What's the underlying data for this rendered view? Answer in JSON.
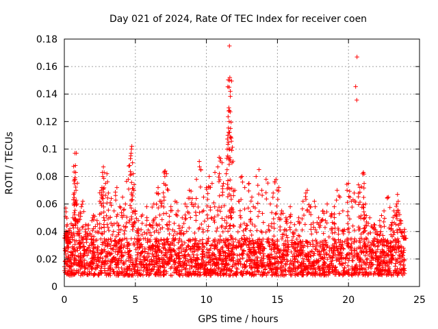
{
  "chart_data": {
    "type": "scatter",
    "title": "Day 021 of 2024, Rate Of TEC Index for receiver coen",
    "xlabel": "GPS time / hours",
    "ylabel": "ROTI / TECUs",
    "xlim": [
      0,
      25
    ],
    "ylim": [
      0,
      0.18
    ],
    "x_ticks": [
      "0",
      "5",
      "10",
      "15",
      "20",
      "25"
    ],
    "y_ticks": [
      "0",
      "0.02",
      "0.04",
      "0.06",
      "0.08",
      "0.1",
      "0.12",
      "0.14",
      "0.16",
      "0.18"
    ],
    "grid": true,
    "marker": "plus",
    "color": "#ff0000",
    "x_extent": [
      0,
      24
    ],
    "baseline_band": [
      0.008,
      0.035
    ],
    "series": [
      {
        "values": [
          {
            "x": 0.05,
            "y": 0.037
          },
          {
            "x": 0.1,
            "y": 0.057
          },
          {
            "x": 0.15,
            "y": 0.036
          },
          {
            "x": 0.2,
            "y": 0.045
          },
          {
            "x": 0.3,
            "y": 0.032
          },
          {
            "x": 0.4,
            "y": 0.042
          },
          {
            "x": 0.5,
            "y": 0.038
          },
          {
            "x": 0.6,
            "y": 0.05
          },
          {
            "x": 0.7,
            "y": 0.068
          },
          {
            "x": 0.72,
            "y": 0.078
          },
          {
            "x": 0.75,
            "y": 0.097
          },
          {
            "x": 0.78,
            "y": 0.088
          },
          {
            "x": 0.8,
            "y": 0.083
          },
          {
            "x": 0.82,
            "y": 0.07
          },
          {
            "x": 0.85,
            "y": 0.097
          },
          {
            "x": 0.9,
            "y": 0.06
          },
          {
            "x": 1.0,
            "y": 0.052
          },
          {
            "x": 1.2,
            "y": 0.058
          },
          {
            "x": 1.3,
            "y": 0.062
          },
          {
            "x": 1.5,
            "y": 0.045
          },
          {
            "x": 1.7,
            "y": 0.042
          },
          {
            "x": 2.0,
            "y": 0.05
          },
          {
            "x": 2.3,
            "y": 0.048
          },
          {
            "x": 2.5,
            "y": 0.062
          },
          {
            "x": 2.6,
            "y": 0.07
          },
          {
            "x": 2.7,
            "y": 0.08
          },
          {
            "x": 2.75,
            "y": 0.087
          },
          {
            "x": 2.8,
            "y": 0.083
          },
          {
            "x": 2.9,
            "y": 0.075
          },
          {
            "x": 3.0,
            "y": 0.082
          },
          {
            "x": 3.1,
            "y": 0.068
          },
          {
            "x": 3.3,
            "y": 0.064
          },
          {
            "x": 3.5,
            "y": 0.055
          },
          {
            "x": 3.7,
            "y": 0.072
          },
          {
            "x": 3.9,
            "y": 0.058
          },
          {
            "x": 4.1,
            "y": 0.065
          },
          {
            "x": 4.3,
            "y": 0.06
          },
          {
            "x": 4.5,
            "y": 0.078
          },
          {
            "x": 4.6,
            "y": 0.088
          },
          {
            "x": 4.7,
            "y": 0.097
          },
          {
            "x": 4.72,
            "y": 0.1
          },
          {
            "x": 4.75,
            "y": 0.102
          },
          {
            "x": 4.8,
            "y": 0.09
          },
          {
            "x": 4.85,
            "y": 0.082
          },
          {
            "x": 4.9,
            "y": 0.07
          },
          {
            "x": 5.0,
            "y": 0.055
          },
          {
            "x": 5.2,
            "y": 0.048
          },
          {
            "x": 5.5,
            "y": 0.052
          },
          {
            "x": 5.8,
            "y": 0.058
          },
          {
            "x": 6.0,
            "y": 0.045
          },
          {
            "x": 6.3,
            "y": 0.06
          },
          {
            "x": 6.5,
            "y": 0.068
          },
          {
            "x": 6.6,
            "y": 0.072
          },
          {
            "x": 6.8,
            "y": 0.062
          },
          {
            "x": 7.0,
            "y": 0.075
          },
          {
            "x": 7.1,
            "y": 0.084
          },
          {
            "x": 7.2,
            "y": 0.082
          },
          {
            "x": 7.3,
            "y": 0.07
          },
          {
            "x": 7.5,
            "y": 0.058
          },
          {
            "x": 7.8,
            "y": 0.062
          },
          {
            "x": 8.0,
            "y": 0.055
          },
          {
            "x": 8.3,
            "y": 0.05
          },
          {
            "x": 8.5,
            "y": 0.06
          },
          {
            "x": 8.8,
            "y": 0.07
          },
          {
            "x": 9.0,
            "y": 0.064
          },
          {
            "x": 9.3,
            "y": 0.078
          },
          {
            "x": 9.5,
            "y": 0.091
          },
          {
            "x": 9.6,
            "y": 0.085
          },
          {
            "x": 9.8,
            "y": 0.065
          },
          {
            "x": 10.0,
            "y": 0.072
          },
          {
            "x": 10.2,
            "y": 0.08
          },
          {
            "x": 10.4,
            "y": 0.075
          },
          {
            "x": 10.6,
            "y": 0.083
          },
          {
            "x": 10.8,
            "y": 0.087
          },
          {
            "x": 10.9,
            "y": 0.094
          },
          {
            "x": 11.0,
            "y": 0.093
          },
          {
            "x": 11.1,
            "y": 0.09
          },
          {
            "x": 11.2,
            "y": 0.075
          },
          {
            "x": 11.4,
            "y": 0.082
          },
          {
            "x": 11.5,
            "y": 0.095
          },
          {
            "x": 11.55,
            "y": 0.105
          },
          {
            "x": 11.58,
            "y": 0.112
          },
          {
            "x": 11.6,
            "y": 0.12
          },
          {
            "x": 11.62,
            "y": 0.128
          },
          {
            "x": 11.6,
            "y": 0.145
          },
          {
            "x": 11.63,
            "y": 0.15
          },
          {
            "x": 11.65,
            "y": 0.152
          },
          {
            "x": 11.62,
            "y": 0.175
          },
          {
            "x": 11.7,
            "y": 0.115
          },
          {
            "x": 11.75,
            "y": 0.108
          },
          {
            "x": 11.8,
            "y": 0.09
          },
          {
            "x": 12.0,
            "y": 0.07
          },
          {
            "x": 12.3,
            "y": 0.062
          },
          {
            "x": 12.5,
            "y": 0.08
          },
          {
            "x": 12.7,
            "y": 0.072
          },
          {
            "x": 13.0,
            "y": 0.075
          },
          {
            "x": 13.2,
            "y": 0.065
          },
          {
            "x": 13.5,
            "y": 0.08
          },
          {
            "x": 13.7,
            "y": 0.085
          },
          {
            "x": 13.9,
            "y": 0.07
          },
          {
            "x": 14.2,
            "y": 0.078
          },
          {
            "x": 14.5,
            "y": 0.06
          },
          {
            "x": 14.7,
            "y": 0.068
          },
          {
            "x": 14.9,
            "y": 0.078
          },
          {
            "x": 15.1,
            "y": 0.072
          },
          {
            "x": 15.3,
            "y": 0.055
          },
          {
            "x": 15.6,
            "y": 0.05
          },
          {
            "x": 15.9,
            "y": 0.058
          },
          {
            "x": 16.2,
            "y": 0.045
          },
          {
            "x": 16.5,
            "y": 0.05
          },
          {
            "x": 16.8,
            "y": 0.062
          },
          {
            "x": 17.0,
            "y": 0.068
          },
          {
            "x": 17.1,
            "y": 0.07
          },
          {
            "x": 17.3,
            "y": 0.058
          },
          {
            "x": 17.6,
            "y": 0.062
          },
          {
            "x": 17.9,
            "y": 0.05
          },
          {
            "x": 18.2,
            "y": 0.055
          },
          {
            "x": 18.5,
            "y": 0.06
          },
          {
            "x": 18.8,
            "y": 0.052
          },
          {
            "x": 19.0,
            "y": 0.058
          },
          {
            "x": 19.2,
            "y": 0.07
          },
          {
            "x": 19.4,
            "y": 0.065
          },
          {
            "x": 19.6,
            "y": 0.055
          },
          {
            "x": 19.9,
            "y": 0.07
          },
          {
            "x": 20.0,
            "y": 0.075
          },
          {
            "x": 20.2,
            "y": 0.062
          },
          {
            "x": 20.4,
            "y": 0.068
          },
          {
            "x": 20.6,
            "y": 0.167
          },
          {
            "x": 20.7,
            "y": 0.074
          },
          {
            "x": 20.8,
            "y": 0.072
          },
          {
            "x": 21.0,
            "y": 0.082
          },
          {
            "x": 21.05,
            "y": 0.083
          },
          {
            "x": 21.1,
            "y": 0.075
          },
          {
            "x": 21.2,
            "y": 0.06
          },
          {
            "x": 21.5,
            "y": 0.05
          },
          {
            "x": 21.8,
            "y": 0.045
          },
          {
            "x": 22.0,
            "y": 0.04
          },
          {
            "x": 22.2,
            "y": 0.048
          },
          {
            "x": 22.5,
            "y": 0.055
          },
          {
            "x": 22.8,
            "y": 0.065
          },
          {
            "x": 23.0,
            "y": 0.045
          },
          {
            "x": 23.2,
            "y": 0.055
          },
          {
            "x": 23.4,
            "y": 0.06
          },
          {
            "x": 23.45,
            "y": 0.067
          },
          {
            "x": 23.5,
            "y": 0.062
          },
          {
            "x": 23.6,
            "y": 0.048
          },
          {
            "x": 23.8,
            "y": 0.04
          },
          {
            "x": 23.95,
            "y": 0.035
          }
        ]
      }
    ]
  }
}
